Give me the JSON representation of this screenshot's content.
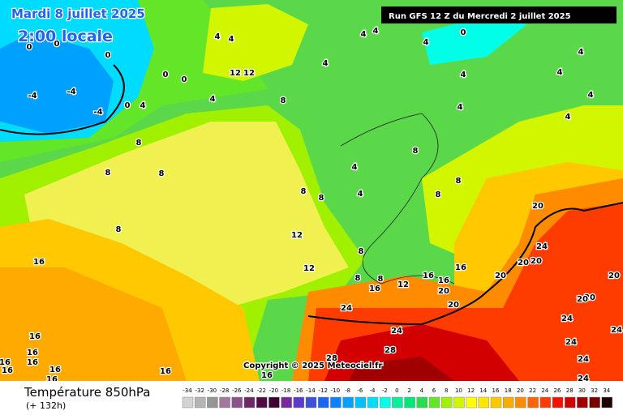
{
  "header": {
    "date": "Mardi 8 juillet 2025",
    "time": "2:00 locale",
    "run": "Run GFS 12 Z du Mercredi 2 juillet 2025",
    "copyright": "Copyright © 2025 Meteociel.fr"
  },
  "map": {
    "contour_labels": [
      4,
      4,
      12,
      12,
      4,
      8,
      4,
      4,
      4,
      0,
      4,
      4,
      4,
      4,
      4,
      4,
      4,
      8,
      4,
      4,
      8,
      8,
      8,
      8,
      0,
      0,
      0,
      0,
      0,
      0,
      4,
      -4,
      -4,
      -4,
      8,
      8,
      8,
      8,
      12,
      12,
      8,
      8,
      8,
      12,
      16,
      16,
      16,
      20,
      16,
      20,
      20,
      20,
      24,
      20,
      20,
      20,
      20,
      20,
      24,
      24,
      24,
      24,
      24,
      28,
      28,
      24,
      24,
      16,
      16,
      16,
      16,
      16,
      16,
      16,
      16,
      16,
      16
    ]
  },
  "legend": {
    "title": "Température 850hPa",
    "subtitle": "(+ 132h)",
    "ticks": [
      -34,
      -32,
      -30,
      -28,
      -26,
      -24,
      -22,
      -20,
      -18,
      -16,
      -14,
      -12,
      -10,
      -8,
      -6,
      -4,
      -2,
      0,
      2,
      4,
      6,
      8,
      10,
      12,
      14,
      16,
      18,
      20,
      22,
      24,
      26,
      28,
      30,
      32,
      34
    ],
    "colors": [
      "#d2d2d2",
      "#b4b4b4",
      "#969696",
      "#a078a0",
      "#8c508c",
      "#6e2866",
      "#500a46",
      "#3c0032",
      "#7828a0",
      "#5a3cc8",
      "#3c50dc",
      "#1e64f0",
      "#0a82ff",
      "#00a0ff",
      "#00beff",
      "#00dcff",
      "#00ffe6",
      "#00f0a0",
      "#00e678",
      "#28dc50",
      "#64e628",
      "#a0f000",
      "#d2f500",
      "#ffff00",
      "#ffe600",
      "#ffc800",
      "#ffaa00",
      "#ff8c00",
      "#ff6400",
      "#ff3c00",
      "#f01400",
      "#d20000",
      "#a00000",
      "#780000",
      "#1e0000"
    ]
  }
}
